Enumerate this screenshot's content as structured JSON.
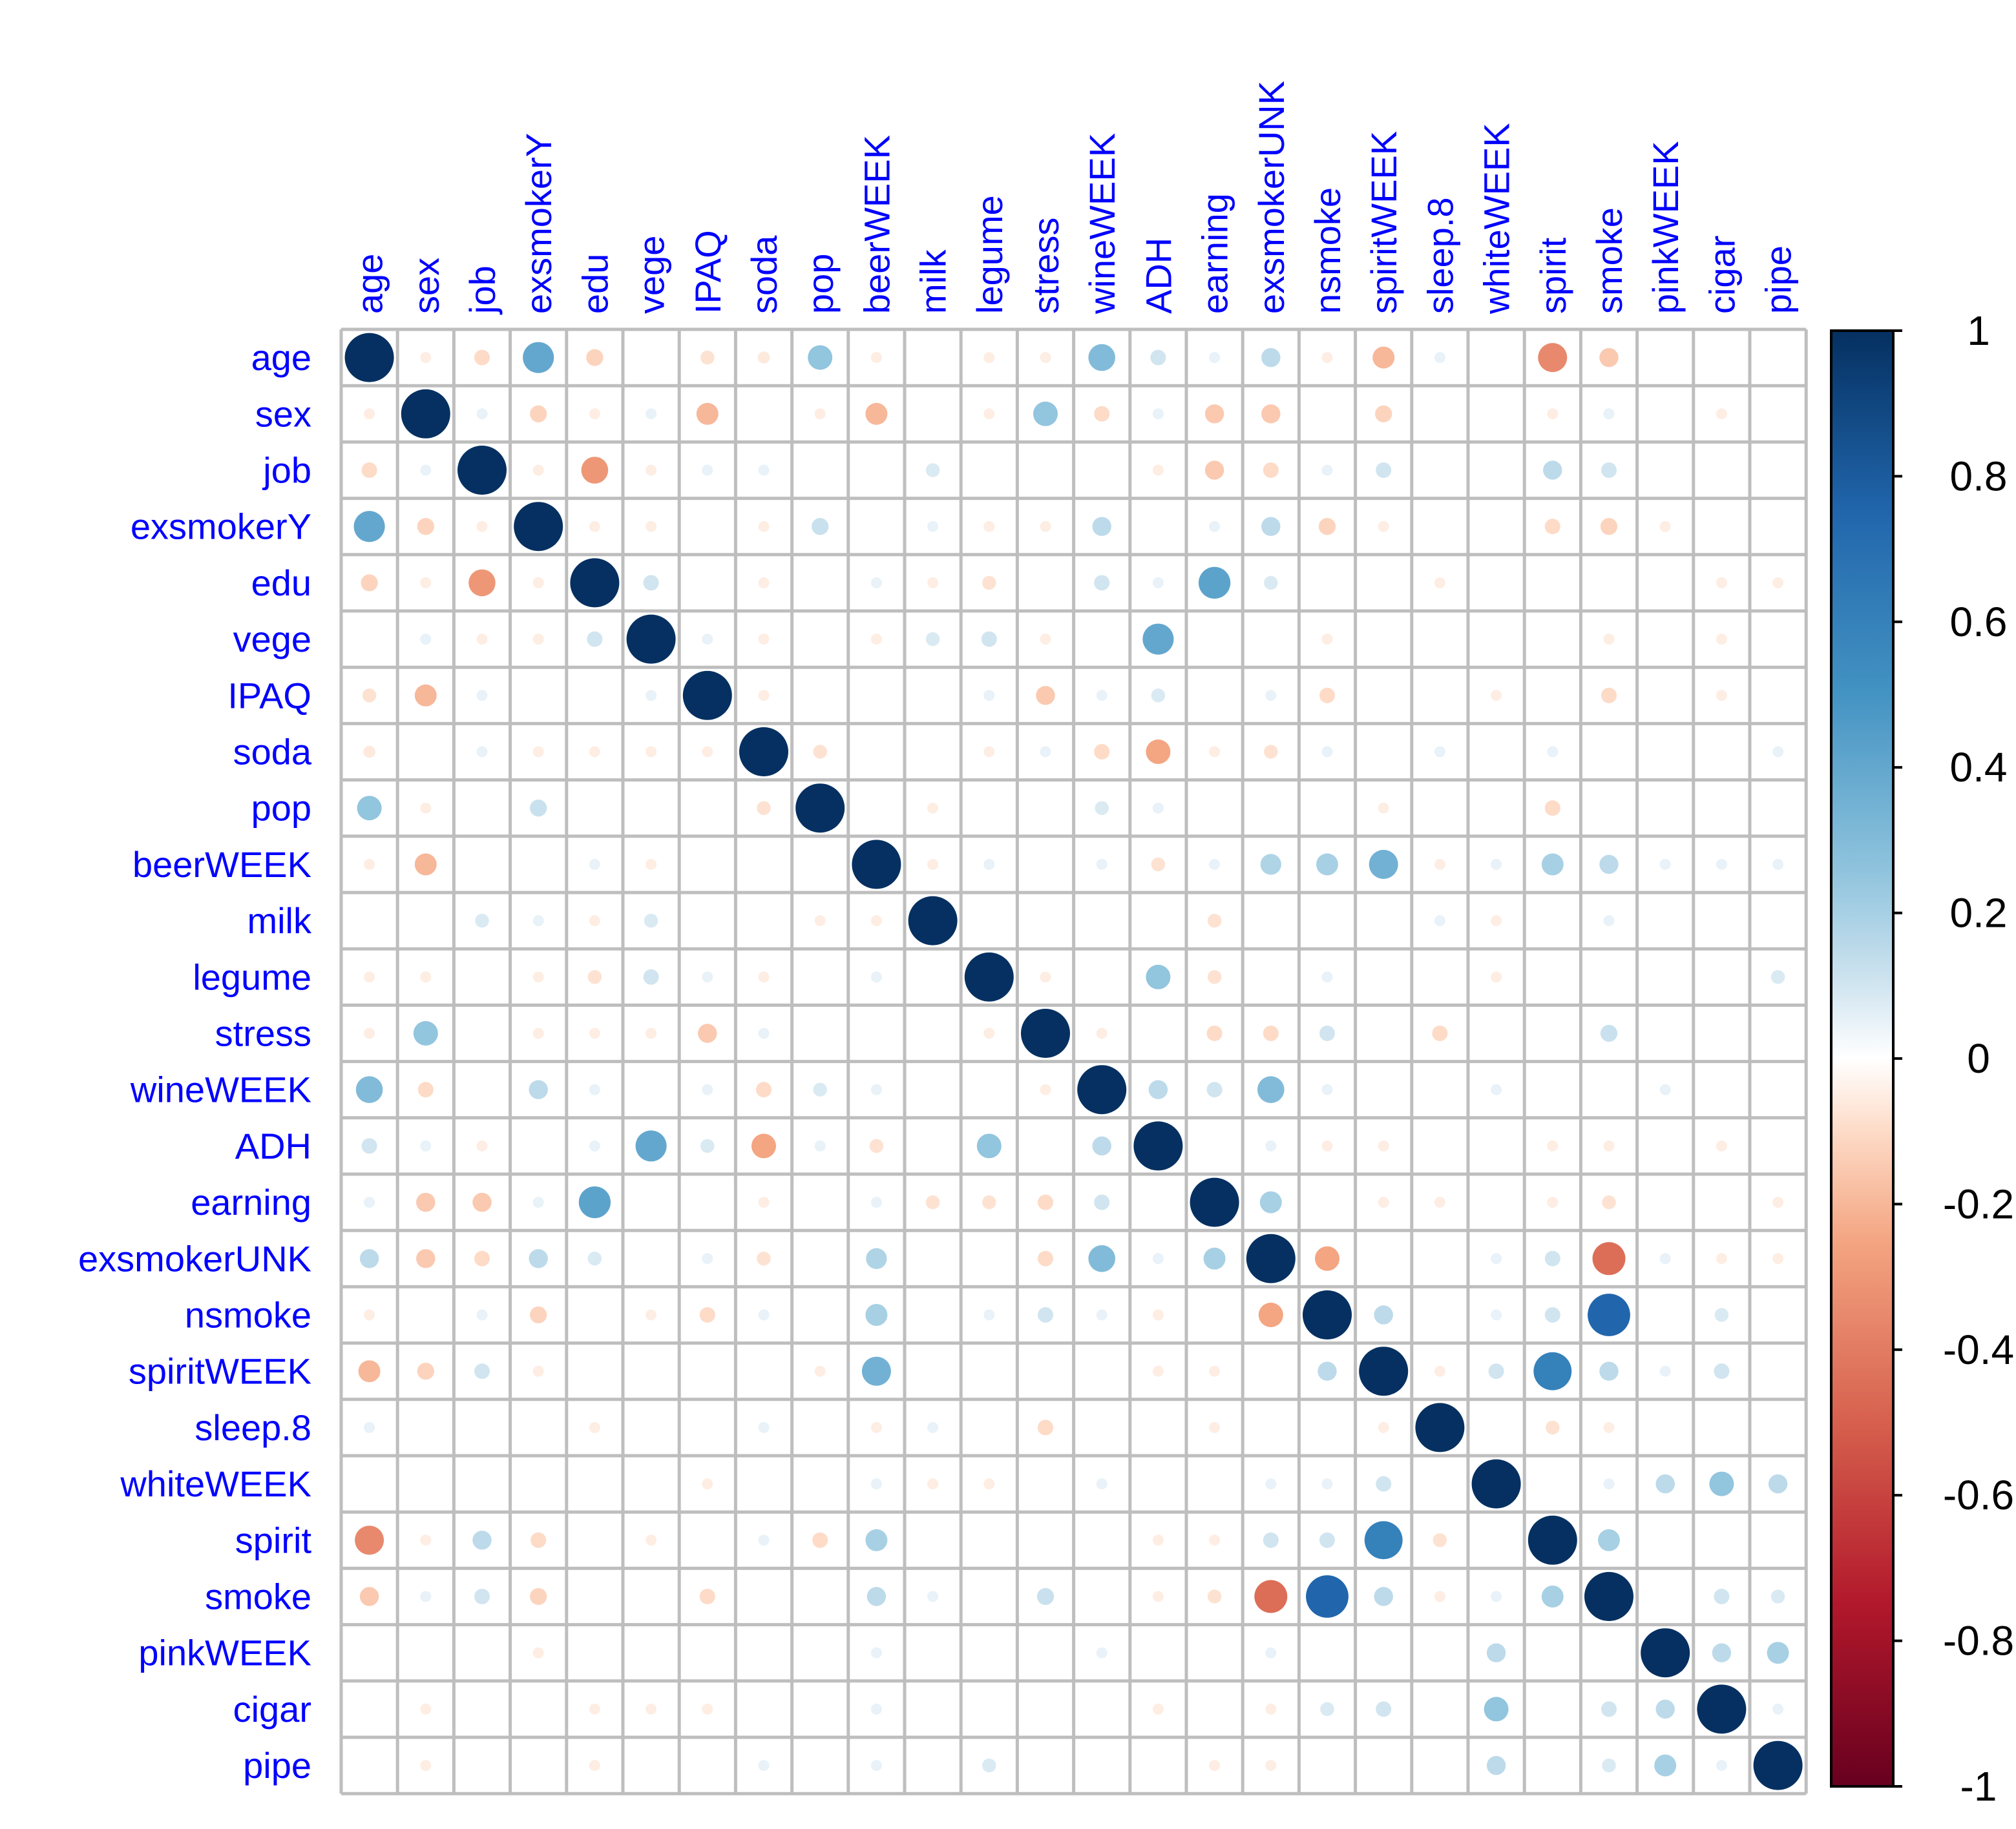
{
  "chart_data": {
    "type": "heatmap",
    "style": "corrplot-circle",
    "title": "",
    "variables": [
      "age",
      "sex",
      "job",
      "exsmokerY",
      "edu",
      "vege",
      "IPAQ",
      "soda",
      "pop",
      "beerWEEK",
      "milk",
      "legume",
      "stress",
      "wineWEEK",
      "ADH",
      "earning",
      "exsmokerUNK",
      "nsmoke",
      "spiritWEEK",
      "sleep.8",
      "whiteWEEK",
      "spirit",
      "smoke",
      "pinkWEEK",
      "cigar",
      "pipe"
    ],
    "color_scale": {
      "range": [
        -1,
        1
      ],
      "tick_labels": [
        "1",
        "0.8",
        "0.6",
        "0.4",
        "0.2",
        "0",
        "-0.2",
        "-0.4",
        "-0.6",
        "-0.8",
        "-1"
      ],
      "stops": [
        {
          "value": -1,
          "color": "#67001f"
        },
        {
          "value": -0.75,
          "color": "#b2182b"
        },
        {
          "value": -0.5,
          "color": "#d6604d"
        },
        {
          "value": -0.25,
          "color": "#f4a582"
        },
        {
          "value": -0.1,
          "color": "#fddbc7"
        },
        {
          "value": 0,
          "color": "#ffffff"
        },
        {
          "value": 0.1,
          "color": "#d1e5f0"
        },
        {
          "value": 0.25,
          "color": "#92c5de"
        },
        {
          "value": 0.5,
          "color": "#4393c3"
        },
        {
          "value": 0.75,
          "color": "#2166ac"
        },
        {
          "value": 1,
          "color": "#053061"
        }
      ]
    },
    "grid_color": "#bebebe",
    "label_color": "#0000ff",
    "matrix": [
      [
        1,
        -0.05,
        -0.1,
        0.4,
        -0.12,
        0,
        -0.08,
        -0.06,
        0.25,
        -0.05,
        0,
        -0.05,
        -0.05,
        0.3,
        0.1,
        0.05,
        0.15,
        -0.05,
        -0.2,
        0.05,
        0,
        -0.35,
        -0.15,
        0,
        0,
        0
      ],
      [
        -0.05,
        1,
        0.05,
        -0.12,
        -0.05,
        0.05,
        -0.2,
        0,
        -0.05,
        -0.2,
        0,
        -0.05,
        0.25,
        -0.1,
        0.05,
        -0.15,
        -0.15,
        0,
        -0.12,
        0,
        0,
        -0.05,
        0.05,
        0,
        -0.05,
        0
      ],
      [
        -0.1,
        0.05,
        1,
        -0.05,
        -0.3,
        -0.05,
        0.05,
        0.05,
        0,
        0,
        0.08,
        0,
        0,
        0,
        -0.05,
        -0.15,
        -0.1,
        0.05,
        0.1,
        0,
        0,
        0.15,
        0.1,
        0,
        0,
        0
      ],
      [
        0.4,
        -0.12,
        -0.05,
        1,
        -0.05,
        -0.05,
        0,
        -0.05,
        0.12,
        0,
        0.05,
        -0.05,
        -0.05,
        0.15,
        0,
        0.05,
        0.15,
        -0.12,
        -0.05,
        0,
        0,
        -0.1,
        -0.12,
        -0.05,
        0,
        0
      ],
      [
        -0.12,
        -0.05,
        -0.3,
        -0.05,
        1,
        0.1,
        0,
        -0.05,
        0,
        0.05,
        -0.05,
        -0.08,
        0,
        0.1,
        0.05,
        0.42,
        0.08,
        0,
        0,
        -0.05,
        0,
        0,
        0,
        0,
        -0.05,
        -0.05
      ],
      [
        0,
        0.05,
        -0.05,
        -0.05,
        0.1,
        1,
        0.05,
        -0.05,
        0,
        -0.05,
        0.08,
        0.1,
        -0.05,
        0,
        0.4,
        0,
        0,
        -0.05,
        0,
        0,
        0,
        0,
        -0.05,
        0,
        -0.05,
        0
      ],
      [
        -0.08,
        -0.2,
        0.05,
        0,
        0,
        0.05,
        1,
        -0.05,
        0,
        0,
        0,
        0.05,
        -0.15,
        0.05,
        0.08,
        0,
        0.05,
        -0.1,
        0,
        0,
        -0.05,
        0,
        -0.1,
        0,
        -0.05,
        0
      ],
      [
        -0.06,
        0,
        0.05,
        -0.05,
        -0.05,
        -0.05,
        -0.05,
        1,
        -0.08,
        0,
        0,
        -0.05,
        0.05,
        -0.1,
        -0.25,
        -0.05,
        -0.08,
        0.05,
        0,
        0.05,
        0,
        0.05,
        0,
        0,
        0,
        0.05
      ],
      [
        0.25,
        -0.05,
        0,
        0.12,
        0,
        0,
        0,
        -0.08,
        1,
        0,
        -0.05,
        0,
        0,
        0.08,
        0.05,
        0,
        0,
        0,
        -0.05,
        0,
        0,
        -0.1,
        0,
        0,
        0,
        0
      ],
      [
        -0.05,
        -0.2,
        0,
        0,
        0.05,
        -0.05,
        0,
        0,
        0,
        1,
        -0.05,
        0.05,
        0,
        0.05,
        -0.08,
        0.05,
        0.18,
        0.2,
        0.35,
        -0.05,
        0.05,
        0.2,
        0.15,
        0.05,
        0.05,
        0.05
      ],
      [
        0,
        0,
        0.08,
        0.05,
        -0.05,
        0.08,
        0,
        0,
        -0.05,
        -0.05,
        1,
        0,
        0,
        0,
        0,
        -0.08,
        0,
        0,
        0,
        0.05,
        -0.05,
        0,
        0.05,
        0,
        0,
        0
      ],
      [
        -0.05,
        -0.05,
        0,
        -0.05,
        -0.08,
        0.1,
        0.05,
        -0.05,
        0,
        0.05,
        0,
        1,
        -0.05,
        0,
        0.25,
        -0.08,
        0,
        0.05,
        0,
        0,
        -0.05,
        0,
        0,
        0,
        0,
        0.08
      ],
      [
        -0.05,
        0.25,
        0,
        -0.05,
        -0.05,
        -0.05,
        -0.15,
        0.05,
        0,
        0,
        0,
        -0.05,
        1,
        -0.05,
        0,
        -0.1,
        -0.1,
        0.1,
        0,
        -0.1,
        0,
        0,
        0.12,
        0,
        0,
        0
      ],
      [
        0.3,
        -0.1,
        0,
        0.15,
        0.05,
        0,
        0.05,
        -0.1,
        0.08,
        0.05,
        0,
        0,
        -0.05,
        1,
        0.15,
        0.1,
        0.3,
        0.05,
        0,
        0,
        0.05,
        0,
        0,
        0.05,
        0,
        0
      ],
      [
        0.1,
        0.05,
        -0.05,
        0,
        0.05,
        0.4,
        0.08,
        -0.25,
        0.05,
        -0.08,
        0,
        0.25,
        0,
        0.15,
        1,
        0,
        0.05,
        -0.05,
        -0.05,
        0,
        0,
        -0.05,
        -0.05,
        0,
        -0.05,
        0
      ],
      [
        0.05,
        -0.15,
        -0.15,
        0.05,
        0.42,
        0,
        0,
        -0.05,
        0,
        0.05,
        -0.08,
        -0.08,
        -0.1,
        0.1,
        0,
        1,
        0.2,
        0,
        -0.05,
        -0.05,
        0,
        -0.05,
        -0.08,
        0,
        0,
        -0.05
      ],
      [
        0.15,
        -0.15,
        -0.1,
        0.15,
        0.08,
        0,
        0.05,
        -0.08,
        0,
        0.18,
        0,
        0,
        -0.1,
        0.3,
        0.05,
        0.2,
        1,
        -0.25,
        0,
        0,
        0.05,
        0.1,
        -0.45,
        0.05,
        -0.05,
        -0.05
      ],
      [
        -0.05,
        0,
        0.05,
        -0.12,
        0,
        -0.05,
        -0.1,
        0.05,
        0,
        0.2,
        0,
        0.05,
        0.1,
        0.05,
        -0.05,
        0,
        -0.25,
        1,
        0.15,
        0,
        0.05,
        0.1,
        0.75,
        0,
        0.08,
        0
      ],
      [
        -0.2,
        -0.12,
        0.1,
        -0.05,
        0,
        0,
        0,
        0,
        -0.05,
        0.35,
        0,
        0,
        0,
        0,
        -0.05,
        -0.05,
        0,
        0.15,
        1,
        -0.05,
        0.1,
        0.6,
        0.15,
        0.05,
        0.1,
        0
      ],
      [
        0.05,
        0,
        0,
        0,
        -0.05,
        0,
        0,
        0.05,
        0,
        -0.05,
        0.05,
        0,
        -0.1,
        0,
        0,
        -0.05,
        0,
        0,
        -0.05,
        1,
        0,
        -0.08,
        -0.05,
        0,
        0,
        0
      ],
      [
        0,
        0,
        0,
        0,
        0,
        0,
        -0.05,
        0,
        0,
        0.05,
        -0.05,
        -0.05,
        0,
        0.05,
        0,
        0,
        0.05,
        0.05,
        0.1,
        0,
        1,
        0,
        0.05,
        0.15,
        0.25,
        0.15
      ],
      [
        -0.35,
        -0.05,
        0.15,
        -0.1,
        0,
        -0.05,
        0,
        0.05,
        -0.1,
        0.2,
        0,
        0,
        0,
        0,
        -0.05,
        -0.05,
        0.1,
        0.1,
        0.6,
        -0.08,
        0,
        1,
        0.2,
        0,
        0,
        0
      ],
      [
        -0.15,
        0.05,
        0.1,
        -0.12,
        0,
        0,
        -0.1,
        0,
        0,
        0.15,
        0.05,
        0,
        0.12,
        0,
        -0.05,
        -0.08,
        -0.45,
        0.75,
        0.15,
        -0.05,
        0.05,
        0.2,
        1,
        0,
        0.1,
        0.08
      ],
      [
        0,
        0,
        0,
        -0.05,
        0,
        0,
        0,
        0,
        0,
        0.05,
        0,
        0,
        0,
        0.05,
        0,
        0,
        0.05,
        0,
        0,
        0,
        0.15,
        0,
        0,
        1,
        0.15,
        0.2
      ],
      [
        0,
        -0.05,
        0,
        0,
        -0.05,
        -0.05,
        -0.05,
        0,
        0,
        0.05,
        0,
        0,
        0,
        0,
        -0.05,
        0,
        -0.05,
        0.08,
        0.1,
        0,
        0.25,
        0,
        0.1,
        0.15,
        1,
        0.05
      ],
      [
        0,
        -0.05,
        0,
        0,
        -0.05,
        0,
        0,
        0.05,
        0,
        0.05,
        0,
        0.08,
        0,
        0,
        0,
        -0.05,
        -0.05,
        0,
        0,
        0,
        0.15,
        0,
        0.08,
        0.2,
        0.05,
        1
      ]
    ]
  }
}
